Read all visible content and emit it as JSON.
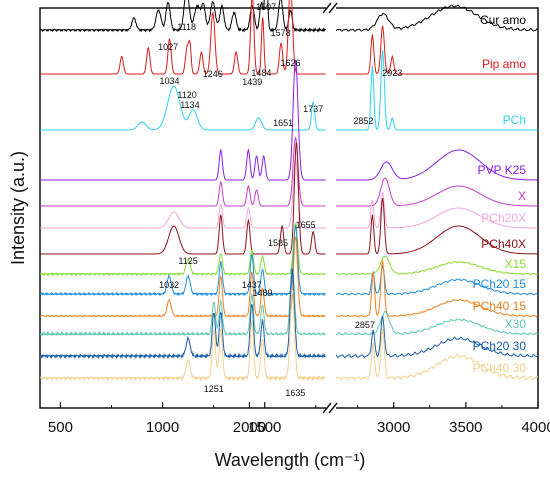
{
  "chart_data": {
    "type": "line",
    "xlabel": "Wavelength (cm⁻¹)",
    "ylabel": "Intensity (a.u.)",
    "x_ticks": [
      "500",
      "1000",
      "1500",
      "2000",
      "3000",
      "3500",
      "4000"
    ],
    "xlim_left": [
      400,
      1800
    ],
    "xlim_right": [
      2600,
      4000
    ],
    "axis_break": true,
    "grid": false,
    "series": [
      {
        "name": "Cur amo",
        "color": "#000000",
        "baseline": 0.945,
        "amp": 0.2,
        "peaks_left": [
          [
            1027,
            0.35,
            10
          ],
          [
            1118,
            0.5,
            12
          ],
          [
            1246,
            0.35,
            12
          ],
          [
            1439,
            0.3,
            10
          ],
          [
            1484,
            0.35,
            8
          ],
          [
            1507,
            0.95,
            6
          ],
          [
            1578,
            0.4,
            10
          ],
          [
            1626,
            0.25,
            8
          ],
          [
            1170,
            0.3,
            14
          ],
          [
            980,
            0.25,
            12
          ],
          [
            860,
            0.15,
            10
          ],
          [
            1290,
            0.3,
            10
          ],
          [
            1350,
            0.22,
            10
          ],
          [
            1200,
            0.3,
            10
          ]
        ],
        "peaks_right": [
          [
            2925,
            0.2,
            40
          ],
          [
            3420,
            0.3,
            160
          ]
        ],
        "noise": 0.6
      },
      {
        "name": "Pip amo",
        "color": "#dd1a1a",
        "baseline": 0.835,
        "amp": 0.22,
        "peaks_left": [
          [
            1034,
            0.4,
            8
          ],
          [
            1120,
            0.3,
            8
          ],
          [
            1134,
            0.3,
            6
          ],
          [
            1246,
            0.7,
            10
          ],
          [
            1439,
            0.9,
            8
          ],
          [
            1490,
            0.65,
            6
          ],
          [
            1626,
            1.0,
            10
          ],
          [
            930,
            0.3,
            8
          ],
          [
            800,
            0.2,
            8
          ],
          [
            1190,
            0.25,
            8
          ],
          [
            1360,
            0.25,
            8
          ],
          [
            1580,
            0.35,
            8
          ]
        ],
        "peaks_right": [
          [
            2852,
            0.45,
            10
          ],
          [
            2923,
            0.55,
            12
          ],
          [
            2990,
            0.2,
            10
          ]
        ],
        "noise": 0.0
      },
      {
        "name": "PCh",
        "color": "#2ad4f0",
        "baseline": 0.695,
        "amp": 0.2,
        "peaks_left": [
          [
            1055,
            0.55,
            30
          ],
          [
            1150,
            0.25,
            20
          ],
          [
            1737,
            0.35,
            8
          ],
          [
            1470,
            0.15,
            15
          ],
          [
            900,
            0.1,
            20
          ]
        ],
        "peaks_right": [
          [
            2852,
            0.8,
            10
          ],
          [
            2923,
            1.0,
            12
          ],
          [
            2990,
            0.15,
            10
          ]
        ],
        "noise": 0.0
      },
      {
        "name": "PVP K25",
        "color": "#8a1ee8",
        "baseline": 0.57,
        "amp": 0.3,
        "peaks_left": [
          [
            1651,
            1.0,
            12
          ],
          [
            1285,
            0.25,
            8
          ],
          [
            1420,
            0.25,
            8
          ],
          [
            1460,
            0.2,
            8
          ],
          [
            1495,
            0.2,
            8
          ]
        ],
        "peaks_right": [
          [
            2950,
            0.15,
            40
          ],
          [
            3450,
            0.25,
            150
          ]
        ],
        "noise": 0.0
      },
      {
        "name": "X",
        "color": "#c93bc9",
        "baseline": 0.505,
        "amp": 0.2,
        "peaks_left": [
          [
            1651,
            0.85,
            12
          ],
          [
            1285,
            0.3,
            8
          ],
          [
            1420,
            0.25,
            8
          ],
          [
            1460,
            0.2,
            8
          ]
        ],
        "peaks_right": [
          [
            2940,
            0.35,
            30
          ],
          [
            3450,
            0.25,
            150
          ]
        ],
        "noise": 0.0
      },
      {
        "name": "PCh20X",
        "color": "#f2a7d6",
        "baseline": 0.45,
        "amp": 0.2,
        "peaks_left": [
          [
            1651,
            0.85,
            12
          ],
          [
            1285,
            0.3,
            8
          ],
          [
            1420,
            0.25,
            8
          ],
          [
            1055,
            0.2,
            25
          ]
        ],
        "peaks_right": [
          [
            2852,
            0.35,
            10
          ],
          [
            2923,
            0.45,
            12
          ],
          [
            3450,
            0.25,
            150
          ]
        ],
        "noise": 0.0
      },
      {
        "name": "PCh40X",
        "color": "#8e1118",
        "baseline": 0.385,
        "amp": 0.28,
        "peaks_left": [
          [
            1655,
            1.0,
            10
          ],
          [
            1585,
            0.25,
            8
          ],
          [
            1285,
            0.35,
            8
          ],
          [
            1420,
            0.3,
            8
          ],
          [
            1055,
            0.25,
            25
          ],
          [
            1737,
            0.2,
            8
          ]
        ],
        "peaks_right": [
          [
            2852,
            0.35,
            10
          ],
          [
            2923,
            0.5,
            12
          ],
          [
            3450,
            0.25,
            150
          ]
        ],
        "noise": 0.0
      },
      {
        "name": "X15",
        "color": "#86dd33",
        "baseline": 0.335,
        "amp": 0.15,
        "peaks_left": [
          [
            1125,
            0.25,
            10
          ],
          [
            1285,
            0.35,
            8
          ],
          [
            1437,
            0.4,
            8
          ],
          [
            1489,
            0.3,
            8
          ],
          [
            1651,
            0.85,
            10
          ]
        ],
        "peaks_right": [
          [
            2940,
            0.3,
            30
          ],
          [
            3450,
            0.2,
            150
          ]
        ],
        "noise": 0.7
      },
      {
        "name": "PCh20 15",
        "color": "#1f8de0",
        "baseline": 0.285,
        "amp": 0.18,
        "peaks_left": [
          [
            1032,
            0.25,
            10
          ],
          [
            1125,
            0.25,
            10
          ],
          [
            1285,
            0.45,
            8
          ],
          [
            1437,
            0.55,
            8
          ],
          [
            1489,
            0.35,
            8
          ],
          [
            1651,
            0.95,
            10
          ]
        ],
        "peaks_right": [
          [
            2857,
            0.3,
            10
          ],
          [
            2923,
            0.4,
            12
          ],
          [
            3450,
            0.2,
            150
          ]
        ],
        "noise": 0.5
      },
      {
        "name": "PCh40 15",
        "color": "#f08020",
        "baseline": 0.23,
        "amp": 0.2,
        "peaks_left": [
          [
            1032,
            0.2,
            10
          ],
          [
            1285,
            0.5,
            8
          ],
          [
            1437,
            0.55,
            8
          ],
          [
            1489,
            0.35,
            8
          ],
          [
            1651,
            1.0,
            10
          ]
        ],
        "peaks_right": [
          [
            2857,
            0.55,
            10
          ],
          [
            2923,
            0.7,
            12
          ],
          [
            3450,
            0.2,
            150
          ]
        ],
        "noise": 0.4
      },
      {
        "name": "X30",
        "color": "#60c8b0",
        "baseline": 0.185,
        "amp": 0.18,
        "peaks_left": [
          [
            1251,
            0.45,
            8
          ],
          [
            1285,
            0.45,
            8
          ],
          [
            1437,
            0.55,
            8
          ],
          [
            1489,
            0.4,
            8
          ],
          [
            1635,
            0.95,
            10
          ]
        ],
        "peaks_right": [
          [
            2940,
            0.3,
            30
          ],
          [
            3450,
            0.2,
            150
          ]
        ],
        "noise": 0.8
      },
      {
        "name": "PCh20 30",
        "color": "#1b5ea8",
        "baseline": 0.13,
        "amp": 0.22,
        "peaks_left": [
          [
            1125,
            0.2,
            10
          ],
          [
            1251,
            0.5,
            8
          ],
          [
            1285,
            0.5,
            8
          ],
          [
            1437,
            0.6,
            8
          ],
          [
            1489,
            0.4,
            8
          ],
          [
            1635,
            1.0,
            10
          ]
        ],
        "peaks_right": [
          [
            2857,
            0.3,
            10
          ],
          [
            2923,
            0.45,
            12
          ],
          [
            3450,
            0.2,
            150
          ]
        ],
        "noise": 0.6
      },
      {
        "name": "PCh40 30",
        "color": "#f4d090",
        "baseline": 0.075,
        "amp": 0.22,
        "peaks_left": [
          [
            1125,
            0.2,
            10
          ],
          [
            1251,
            0.55,
            8
          ],
          [
            1285,
            0.55,
            8
          ],
          [
            1437,
            0.65,
            8
          ],
          [
            1489,
            0.45,
            8
          ],
          [
            1635,
            1.0,
            10
          ]
        ],
        "peaks_right": [
          [
            2857,
            0.4,
            10
          ],
          [
            2923,
            0.55,
            12
          ],
          [
            3450,
            0.25,
            150
          ]
        ],
        "noise": 0.9
      }
    ],
    "annotations": [
      {
        "text": "1507",
        "x": 1507,
        "y": 0.995
      },
      {
        "text": "1118",
        "x": 1118,
        "y": 0.945
      },
      {
        "text": "1027",
        "x": 1027,
        "y": 0.895
      },
      {
        "text": "1578",
        "x": 1578,
        "y": 0.93
      },
      {
        "text": "1484",
        "x": 1484,
        "y": 0.83
      },
      {
        "text": "1626",
        "x": 1626,
        "y": 0.855
      },
      {
        "text": "1246",
        "x": 1246,
        "y": 0.828
      },
      {
        "text": "1439",
        "x": 1439,
        "y": 0.808
      },
      {
        "text": "1034",
        "x": 1034,
        "y": 0.81
      },
      {
        "text": "1120",
        "x": 1120,
        "y": 0.775
      },
      {
        "text": "1134",
        "x": 1134,
        "y": 0.75
      },
      {
        "text": "2923",
        "x": 2990,
        "y": 0.83
      },
      {
        "text": "2852",
        "x": 2790,
        "y": 0.71
      },
      {
        "text": "1737",
        "x": 1737,
        "y": 0.74
      },
      {
        "text": "1651",
        "x": 1590,
        "y": 0.705
      },
      {
        "text": "1655",
        "x": 1700,
        "y": 0.45
      },
      {
        "text": "1585",
        "x": 1565,
        "y": 0.405
      },
      {
        "text": "1125",
        "x": 1125,
        "y": 0.36
      },
      {
        "text": "1032",
        "x": 1032,
        "y": 0.3
      },
      {
        "text": "1437",
        "x": 1437,
        "y": 0.3
      },
      {
        "text": "1489",
        "x": 1489,
        "y": 0.28
      },
      {
        "text": "2857",
        "x": 2800,
        "y": 0.2
      },
      {
        "text": "1251",
        "x": 1251,
        "y": 0.04
      },
      {
        "text": "1635",
        "x": 1650,
        "y": 0.03
      }
    ]
  }
}
